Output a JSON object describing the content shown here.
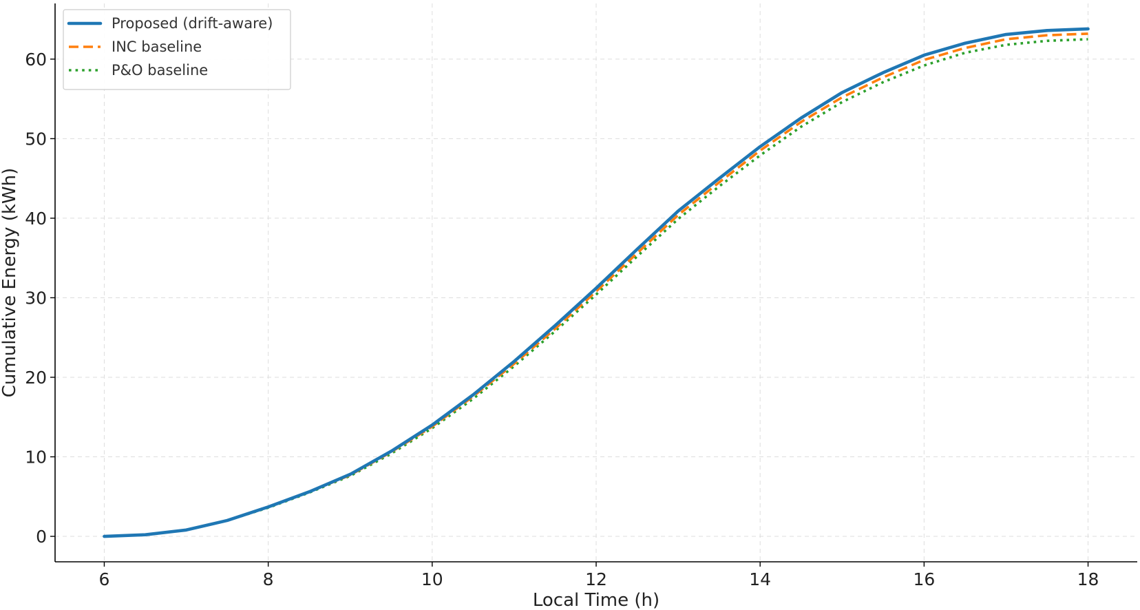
{
  "chart_data": {
    "type": "line",
    "xlabel": "Local Time (h)",
    "ylabel": "Cumulative Energy (kWh)",
    "xlim": [
      5.4,
      18.6
    ],
    "ylim": [
      -3.2,
      67
    ],
    "xticks": [
      6,
      8,
      10,
      12,
      14,
      16,
      18
    ],
    "yticks": [
      0,
      10,
      20,
      30,
      40,
      50,
      60
    ],
    "grid": true,
    "legend_position": "top-left",
    "x": [
      6.0,
      6.5,
      7.0,
      7.5,
      8.0,
      8.5,
      9.0,
      9.5,
      10.0,
      10.5,
      11.0,
      11.5,
      12.0,
      12.5,
      13.0,
      13.5,
      14.0,
      14.5,
      15.0,
      15.5,
      16.0,
      16.5,
      17.0,
      17.5,
      18.0
    ],
    "series": [
      {
        "name": "Proposed (drift-aware)",
        "color": "#1f77b4",
        "style": "solid",
        "values": [
          0.0,
          0.2,
          0.8,
          2.0,
          3.7,
          5.6,
          7.8,
          10.7,
          14.0,
          17.8,
          22.0,
          26.5,
          31.2,
          36.1,
          40.9,
          45.0,
          49.0,
          52.6,
          55.8,
          58.3,
          60.5,
          62.0,
          63.1,
          63.6,
          63.8
        ]
      },
      {
        "name": "INC baseline",
        "color": "#ff7f0e",
        "style": "dashed",
        "values": [
          0.0,
          0.2,
          0.8,
          2.0,
          3.7,
          5.6,
          7.7,
          10.6,
          13.8,
          17.6,
          21.7,
          26.1,
          30.8,
          35.6,
          40.4,
          44.5,
          48.5,
          52.1,
          55.2,
          57.7,
          59.9,
          61.4,
          62.5,
          63.0,
          63.2
        ]
      },
      {
        "name": "P&O baseline",
        "color": "#2ca02c",
        "style": "dotted",
        "values": [
          0.0,
          0.2,
          0.8,
          2.0,
          3.6,
          5.5,
          7.6,
          10.4,
          13.6,
          17.3,
          21.4,
          25.8,
          30.4,
          35.2,
          39.9,
          44.0,
          47.9,
          51.5,
          54.6,
          57.1,
          59.2,
          60.8,
          61.8,
          62.3,
          62.5
        ]
      }
    ]
  }
}
